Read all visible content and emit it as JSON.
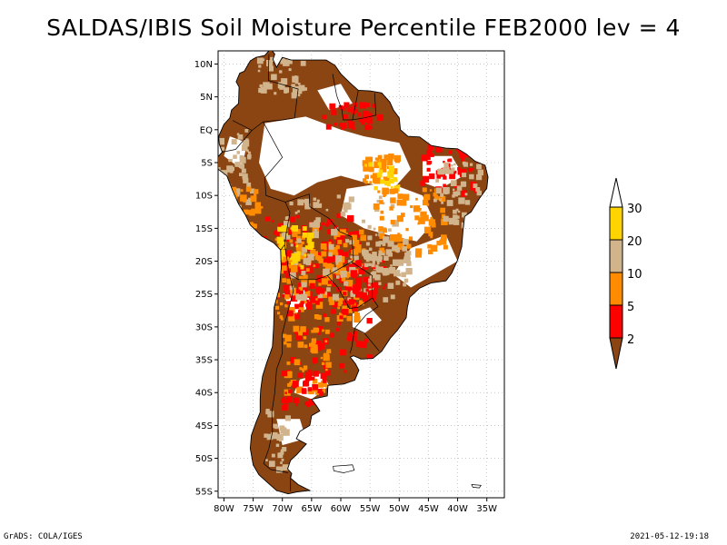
{
  "title": "SALDAS/IBIS Soil Moisture Percentile FEB2000 lev = 4",
  "footer": {
    "left": "GrADS: COLA/IGES",
    "right": "2021-05-12-19:18"
  },
  "map": {
    "lat_ticks": [
      "10N",
      "5N",
      "EQ",
      "5S",
      "10S",
      "15S",
      "20S",
      "25S",
      "30S",
      "35S",
      "40S",
      "45S",
      "50S",
      "55S"
    ],
    "lon_ticks": [
      "80W",
      "75W",
      "70W",
      "65W",
      "60W",
      "55W",
      "50W",
      "45W",
      "40W",
      "35W"
    ],
    "lon_range": [
      -81,
      -32
    ],
    "lat_range": [
      -56,
      12
    ]
  },
  "colorbar": {
    "labels": [
      "30",
      "20",
      "10",
      "5",
      "2"
    ],
    "colors": {
      "above_30": "#ffffff",
      "c20_30": "#ffd400",
      "c10_20": "#d2b48c",
      "c5_10": "#ff8c00",
      "c2_5": "#ff0000",
      "below_2": "#8b4513"
    }
  }
}
